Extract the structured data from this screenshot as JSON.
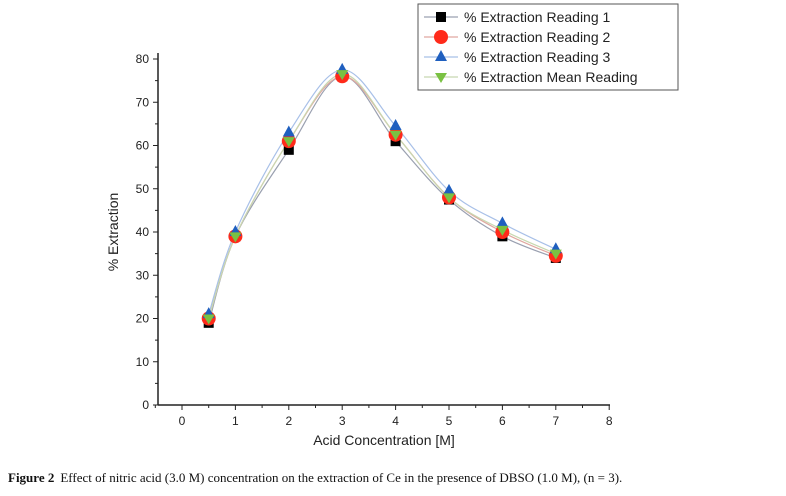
{
  "chart_data": {
    "type": "line",
    "title": "",
    "xlabel": "Acid Concentration [M]",
    "ylabel": "% Extraction",
    "xlim": [
      -0.5,
      8
    ],
    "ylim": [
      0,
      80
    ],
    "xticks": [
      0,
      1,
      2,
      3,
      4,
      5,
      6,
      7,
      8
    ],
    "yticks": [
      0,
      10,
      20,
      30,
      40,
      50,
      60,
      70,
      80
    ],
    "grid": false,
    "legend_position": "top-right",
    "x": [
      0.5,
      1,
      2,
      3,
      4,
      5,
      6,
      7
    ],
    "series": [
      {
        "name": "% Extraction Reading 1",
        "marker": "square",
        "color": "#000000",
        "line_color": "#9aa0b0",
        "values": [
          19,
          39,
          59,
          76,
          61,
          47.5,
          39,
          34
        ]
      },
      {
        "name": "% Extraction Reading 2",
        "marker": "circle",
        "color": "#ff2a1a",
        "line_color": "#e0a8a0",
        "values": [
          20,
          39,
          61,
          76,
          62.5,
          48,
          40,
          34.5
        ]
      },
      {
        "name": "% Extraction Reading 3",
        "marker": "triangle-up",
        "color": "#1f5fbf",
        "line_color": "#a8c0e8",
        "values": [
          21,
          40,
          63,
          77.5,
          64.5,
          49.5,
          42,
          36
        ]
      },
      {
        "name": "% Extraction Mean Reading",
        "marker": "triangle-down",
        "color": "#7ac142",
        "line_color": "#c8d8b0",
        "values": [
          20,
          39,
          61,
          76.5,
          62.5,
          48,
          40.5,
          35
        ]
      }
    ]
  },
  "caption": {
    "label": "Figure 2",
    "text": "Effect of nitric acid (3.0 M) concentration on the extraction of Ce in the presence of DBSO (1.0 M), (n = 3)."
  }
}
